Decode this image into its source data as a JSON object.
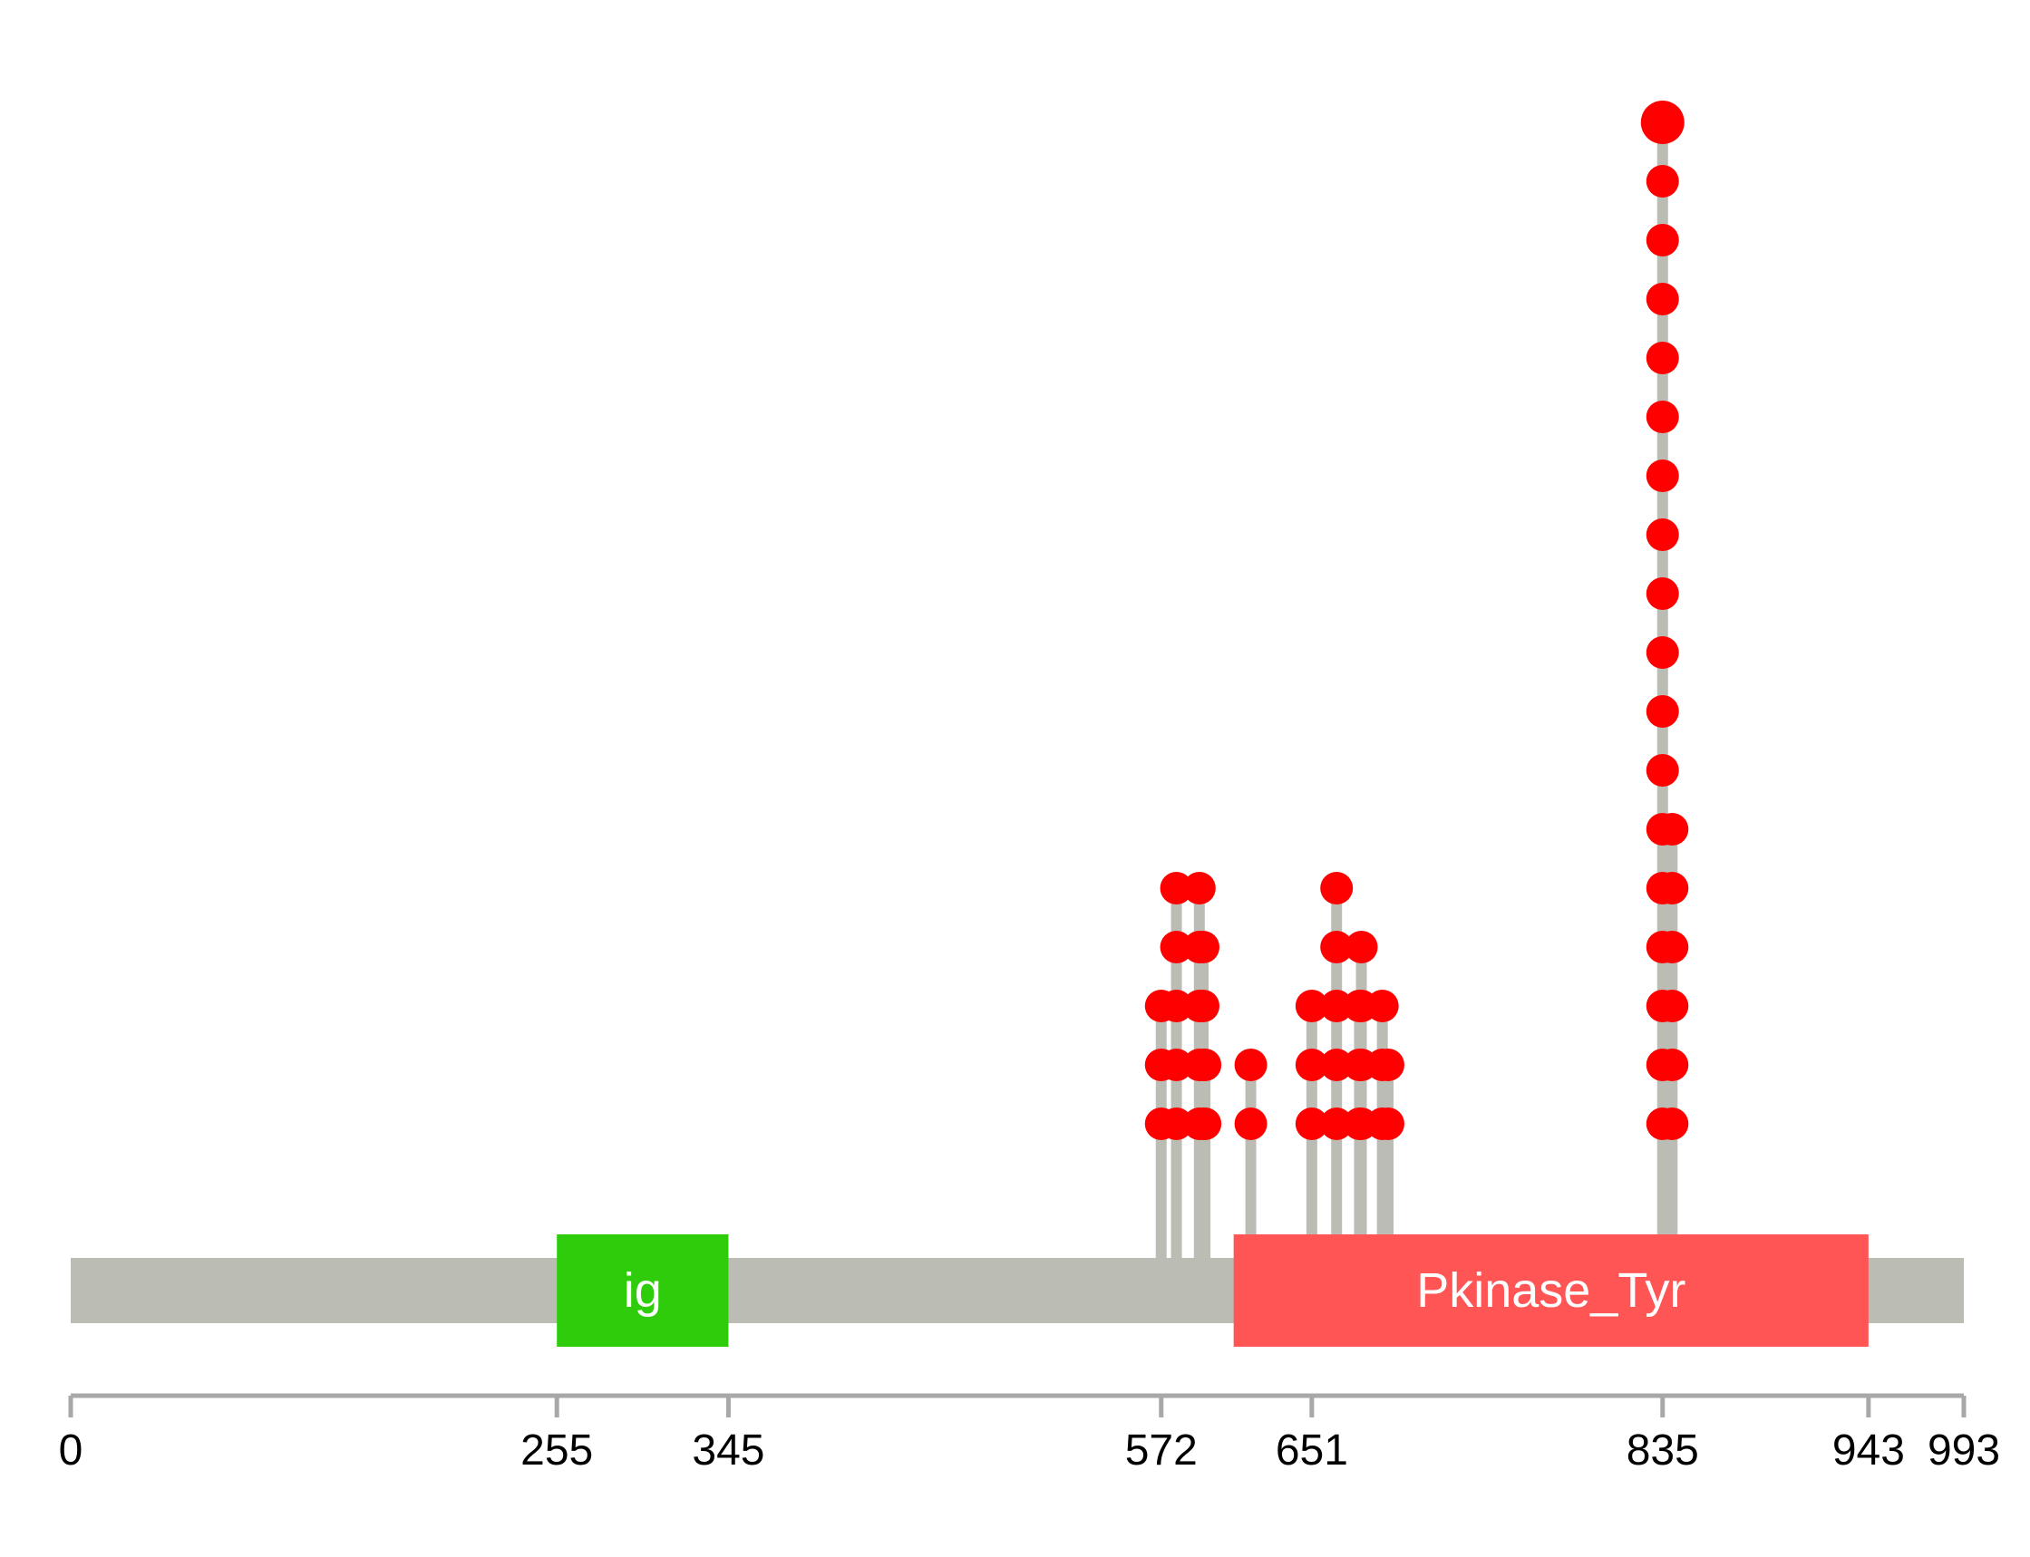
{
  "chart_data": {
    "type": "lollipop",
    "title": "",
    "xlabel": "",
    "ylabel": "",
    "protein_length": 993,
    "xlim": [
      0,
      993
    ],
    "ylim": [
      0,
      18
    ],
    "ticks": [
      {
        "value": 0,
        "label": "0"
      },
      {
        "value": 255,
        "label": "255"
      },
      {
        "value": 345,
        "label": "345"
      },
      {
        "value": 572,
        "label": "572"
      },
      {
        "value": 651,
        "label": "651"
      },
      {
        "value": 835,
        "label": "835"
      },
      {
        "value": 943,
        "label": "943"
      },
      {
        "value": 993,
        "label": "993"
      }
    ],
    "domains": [
      {
        "name": "ig",
        "start": 255,
        "end": 345,
        "color": "#2ecc0a"
      },
      {
        "name": "Pkinase_Tyr",
        "start": 610,
        "end": 943,
        "color": "#ff5555"
      }
    ],
    "mutations": [
      {
        "position": 572,
        "count": 3
      },
      {
        "position": 580,
        "count": 5
      },
      {
        "position": 592,
        "count": 5
      },
      {
        "position": 594,
        "count": 4
      },
      {
        "position": 595,
        "count": 2
      },
      {
        "position": 619,
        "count": 2
      },
      {
        "position": 651,
        "count": 3
      },
      {
        "position": 664,
        "count": 5
      },
      {
        "position": 676,
        "count": 3
      },
      {
        "position": 677,
        "count": 4
      },
      {
        "position": 688,
        "count": 3
      },
      {
        "position": 691,
        "count": 2
      },
      {
        "position": 835,
        "count": 18
      },
      {
        "position": 840,
        "count": 6
      }
    ],
    "colors": {
      "backbone": "#bbbdb5",
      "stem": "#bbbdb5",
      "head": "#ff0000",
      "axis": "#a8a8a8"
    }
  }
}
